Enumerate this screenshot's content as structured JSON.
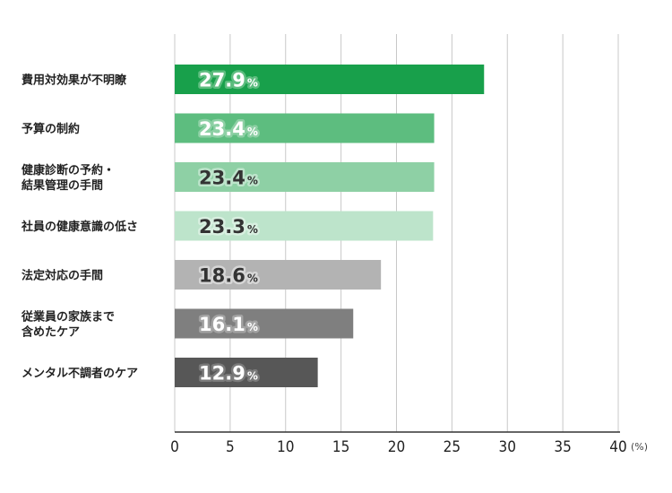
{
  "chart_data": {
    "type": "bar",
    "orientation": "horizontal",
    "categories": [
      [
        "費用対効果が不明瞭"
      ],
      [
        "予算の制約"
      ],
      [
        "健康診断の予約・",
        "結果管理の手間"
      ],
      [
        "社員の健康意識の低さ"
      ],
      [
        "法定対応の手間"
      ],
      [
        "従業員の家族まで",
        "含めたケア"
      ],
      [
        "メンタル不調者のケア"
      ]
    ],
    "values": [
      27.9,
      23.4,
      23.4,
      23.3,
      18.6,
      16.1,
      12.9
    ],
    "value_labels": [
      "27.9",
      "23.4",
      "23.4",
      "23.3",
      "18.6",
      "16.1",
      "12.9"
    ],
    "value_suffix": "%",
    "bar_colors": [
      "#18a04b",
      "#5dbd7f",
      "#8ed0a5",
      "#bde4cb",
      "#b3b3b3",
      "#7f7f7f",
      "#575757"
    ],
    "label_colors": [
      "#ffffff",
      "#ffffff",
      "#333333",
      "#333333",
      "#333333",
      "#ffffff",
      "#ffffff"
    ],
    "label_outline_colors": [
      "#5dbd7f",
      "#8ed0a5",
      "#bde4cb",
      "#d8efe0",
      "#d6d6d6",
      "#a3a3a3",
      "#7a7a7a"
    ],
    "xlim": [
      0,
      40
    ],
    "xticks": [
      0,
      5,
      10,
      15,
      20,
      25,
      30,
      35,
      40
    ],
    "xunit": "(%)",
    "grid": true
  }
}
